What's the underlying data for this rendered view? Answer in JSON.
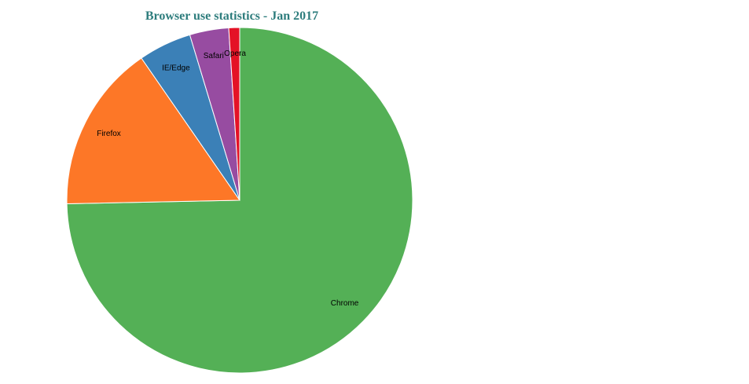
{
  "chart_data": {
    "type": "pie",
    "title": "Browser use statistics - Jan 2017",
    "title_color": "#2e7d7d",
    "slices": [
      {
        "label": "Chrome",
        "value": 73.7,
        "color": "#54b056"
      },
      {
        "label": "Firefox",
        "value": 15.5,
        "color": "#fd7727"
      },
      {
        "label": "IE/Edge",
        "value": 4.9,
        "color": "#3b80b7"
      },
      {
        "label": "Safari",
        "value": 3.6,
        "color": "#974ca1"
      },
      {
        "label": "Opera",
        "value": 1.0,
        "color": "#e41226"
      }
    ],
    "start": "top",
    "direction": "clockwise",
    "legend": "none"
  }
}
